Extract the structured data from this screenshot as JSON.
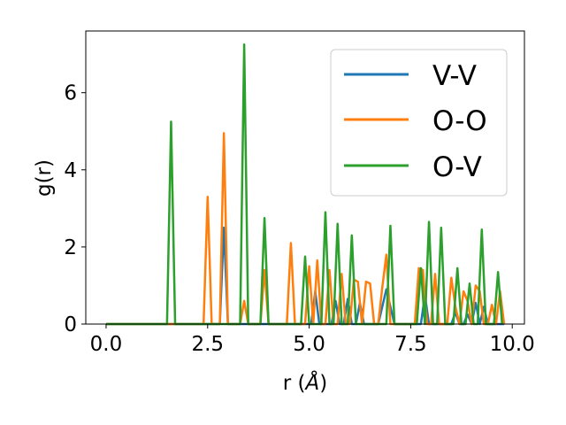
{
  "chart_data": {
    "type": "line",
    "xlabel": "r (",
    "xlabel_unit": "Å",
    "xlabel_close": ")",
    "ylabel": "g(r)",
    "xlim": [
      -0.5,
      10.3
    ],
    "ylim": [
      0,
      7.6
    ],
    "xticks": [
      0.0,
      2.5,
      5.0,
      7.5,
      10.0
    ],
    "xtick_labels": [
      "0.0",
      "2.5",
      "5.0",
      "7.5",
      "10.0"
    ],
    "yticks": [
      0,
      2,
      4,
      6
    ],
    "ytick_labels": [
      "0",
      "2",
      "4",
      "6"
    ],
    "grid": false,
    "legend_position": "top-right",
    "series": [
      {
        "name": "V-V",
        "color": "#1f77b4",
        "x": [
          0,
          2.8,
          2.9,
          3.0,
          5.05,
          5.15,
          5.25,
          5.55,
          5.65,
          5.75,
          5.85,
          5.95,
          6.05,
          6.15,
          6.25,
          6.35,
          6.45,
          6.7,
          6.9,
          7.1,
          7.75,
          7.85,
          7.95,
          8.5,
          8.6,
          8.7,
          8.8,
          8.9,
          9.0,
          9.1,
          9.2,
          9.3,
          9.4,
          9.8
        ],
        "y": [
          0,
          0,
          2.5,
          0,
          0,
          0.85,
          0,
          0,
          0.6,
          0,
          0,
          0.65,
          0,
          0,
          0.55,
          0,
          0,
          0,
          0.9,
          0,
          0,
          0.75,
          0,
          0,
          0.3,
          0,
          0,
          0.25,
          0,
          0.55,
          0,
          0.45,
          0,
          0
        ]
      },
      {
        "name": "O-O",
        "color": "#ff7f0e",
        "x": [
          0,
          2.4,
          2.5,
          2.6,
          2.8,
          2.9,
          3.0,
          3.3,
          3.4,
          3.5,
          3.8,
          3.9,
          4.0,
          4.45,
          4.55,
          4.65,
          4.9,
          5.0,
          5.1,
          5.2,
          5.3,
          5.4,
          5.5,
          5.6,
          5.7,
          5.8,
          5.9,
          6.0,
          6.1,
          6.2,
          6.3,
          6.4,
          6.5,
          6.6,
          6.7,
          6.8,
          6.9,
          7.0,
          7.1,
          7.6,
          7.7,
          7.8,
          7.9,
          8.0,
          8.1,
          8.2,
          8.3,
          8.4,
          8.5,
          8.6,
          8.7,
          8.8,
          8.9,
          9.0,
          9.1,
          9.2,
          9.3,
          9.4,
          9.5,
          9.6,
          9.7,
          9.8
        ],
        "y": [
          0,
          0,
          3.3,
          0,
          0,
          4.95,
          0,
          0,
          0.6,
          0,
          0,
          1.4,
          0,
          0,
          2.1,
          0,
          0,
          1.5,
          0,
          1.65,
          0,
          0,
          1.4,
          0,
          0,
          1.3,
          0,
          0,
          1.15,
          1.1,
          0,
          1.1,
          1.05,
          0,
          0,
          0.95,
          1.8,
          0,
          0,
          0,
          1.45,
          1.4,
          0,
          0,
          1.3,
          0,
          0,
          0,
          1.2,
          0.45,
          0,
          0.85,
          0.6,
          0,
          1.0,
          0.85,
          0,
          0,
          0.5,
          0,
          0.85,
          0
        ]
      },
      {
        "name": "O-V",
        "color": "#2ca02c",
        "x": [
          0,
          1.5,
          1.6,
          1.7,
          3.3,
          3.4,
          3.5,
          3.8,
          3.9,
          4.0,
          4.8,
          4.9,
          5.0,
          5.3,
          5.4,
          5.5,
          5.6,
          5.7,
          5.8,
          5.95,
          6.05,
          6.15,
          6.9,
          7.0,
          7.1,
          7.65,
          7.75,
          7.85,
          7.95,
          8.05,
          8.15,
          8.25,
          8.35,
          8.55,
          8.65,
          8.75,
          8.85,
          8.95,
          9.05,
          9.15,
          9.25,
          9.35,
          9.55,
          9.65,
          9.75
        ],
        "y": [
          0,
          0,
          5.25,
          0,
          0,
          7.25,
          0,
          0,
          2.75,
          0,
          0,
          1.75,
          0,
          0,
          2.9,
          0,
          0,
          2.6,
          0,
          0,
          2.3,
          0,
          0,
          2.55,
          0,
          0,
          1.45,
          0,
          2.65,
          0,
          0,
          2.5,
          0,
          0,
          1.45,
          0,
          0,
          1.05,
          0,
          0,
          2.45,
          0,
          0,
          1.35,
          0
        ]
      }
    ]
  }
}
